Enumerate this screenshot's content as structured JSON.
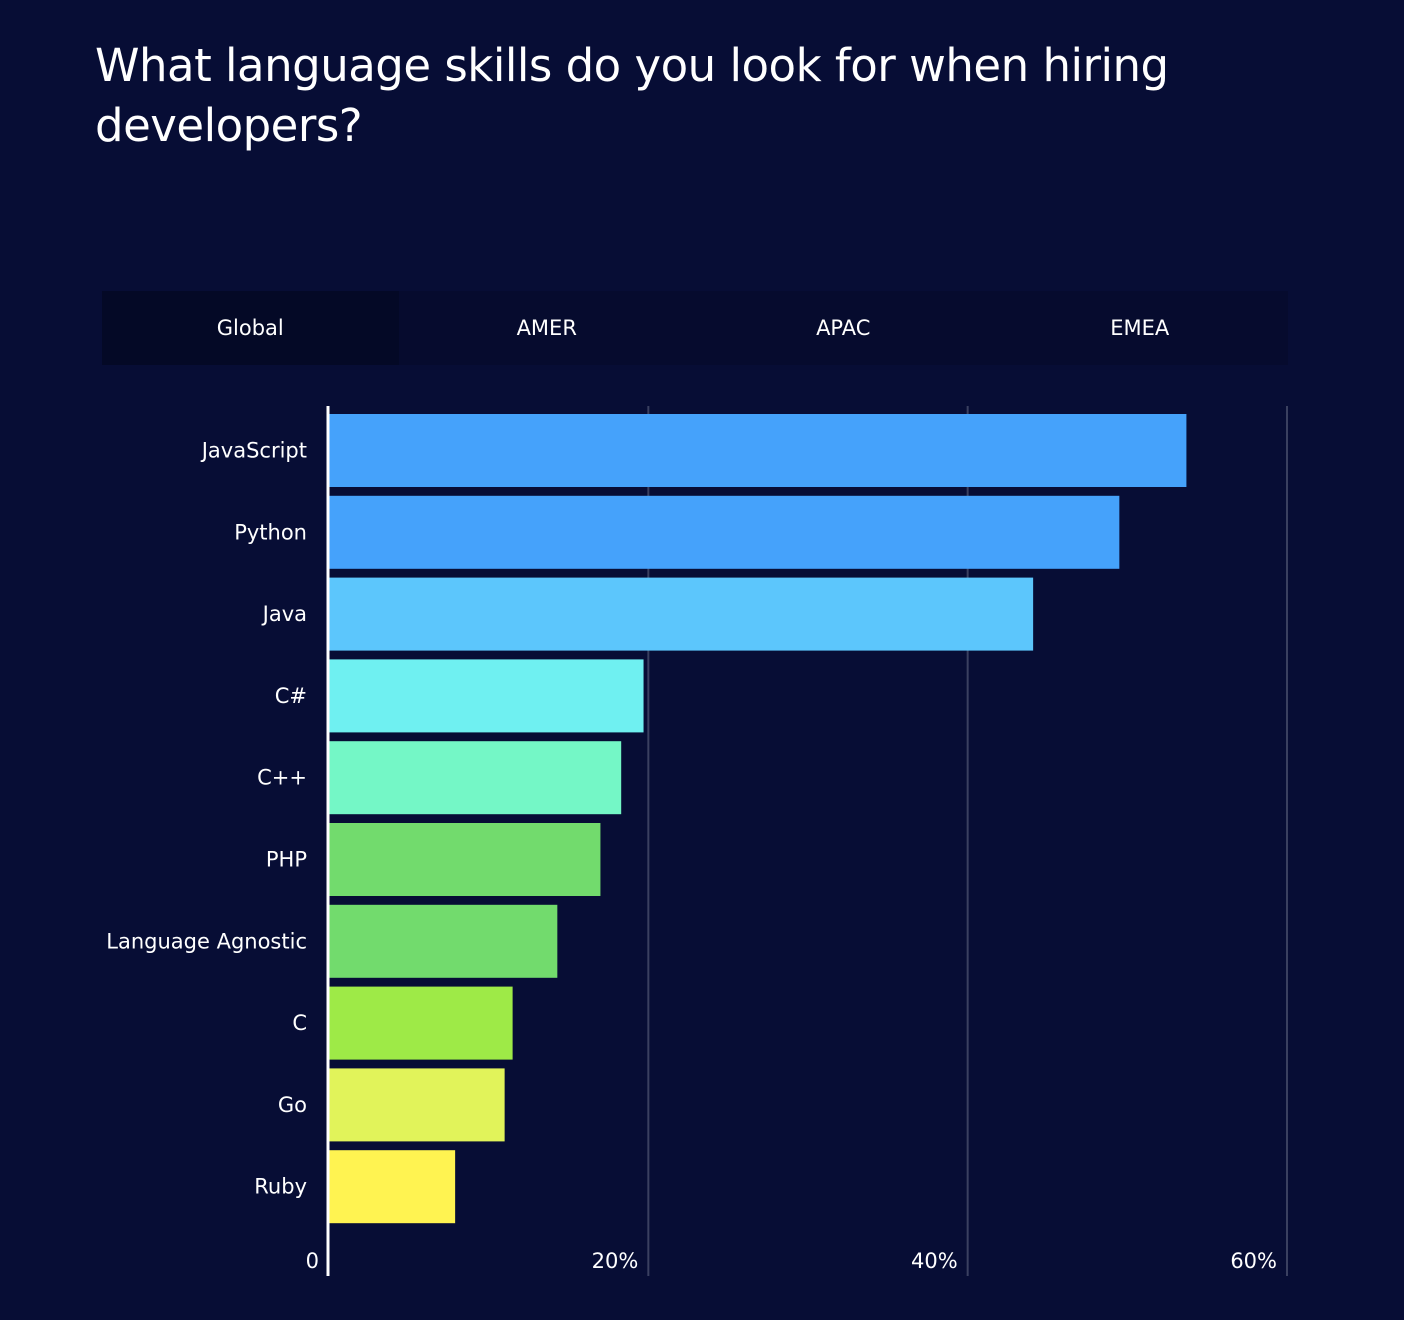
{
  "title": "What language skills do you look for when hiring developers?",
  "tabs": [
    {
      "label": "Global",
      "active": true
    },
    {
      "label": "AMER"
    },
    {
      "label": "APAC"
    },
    {
      "label": "EMEA"
    }
  ],
  "chart_data": {
    "type": "bar",
    "orientation": "horizontal",
    "categories": [
      "JavaScript",
      "Python",
      "Java",
      "C#",
      "C++",
      "PHP",
      "Language Agnostic",
      "C",
      "Go",
      "Ruby"
    ],
    "values": [
      53.7,
      49.5,
      44.1,
      19.7,
      18.3,
      17.0,
      14.3,
      11.5,
      11.0,
      7.9
    ],
    "colors": [
      "#45a2fb",
      "#45a2fb",
      "#5cc6fc",
      "#6ff0f1",
      "#74f7c6",
      "#72db6d",
      "#72db6d",
      "#9eea47",
      "#e1f35a",
      "#fff351"
    ],
    "xlim": [
      0,
      60
    ],
    "xticks": [
      {
        "value": 0,
        "label": "0"
      },
      {
        "value": 20,
        "label": "20%"
      },
      {
        "value": 40,
        "label": "40%"
      },
      {
        "value": 60,
        "label": "60%"
      }
    ],
    "grid": true,
    "unit": "%"
  }
}
